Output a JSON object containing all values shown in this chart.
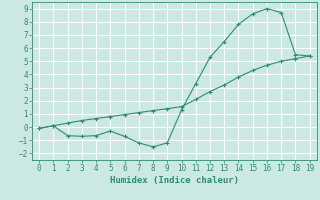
{
  "line1_x": [
    0,
    1,
    2,
    3,
    4,
    5,
    6,
    7,
    8,
    9,
    10,
    11,
    12,
    13,
    14,
    15,
    16,
    17,
    18,
    19
  ],
  "line1_y": [
    -0.1,
    0.1,
    -0.65,
    -0.7,
    -0.65,
    -0.3,
    -0.7,
    -1.2,
    -1.5,
    -1.2,
    1.3,
    3.3,
    5.3,
    6.5,
    7.8,
    8.6,
    9.0,
    8.7,
    5.5,
    5.4
  ],
  "line2_x": [
    0,
    1,
    2,
    3,
    4,
    5,
    6,
    7,
    8,
    9,
    10,
    11,
    12,
    13,
    14,
    15,
    16,
    17,
    18,
    19
  ],
  "line2_y": [
    -0.1,
    0.1,
    0.3,
    0.5,
    0.65,
    0.8,
    0.95,
    1.1,
    1.25,
    1.4,
    1.55,
    2.1,
    2.7,
    3.2,
    3.8,
    4.3,
    4.7,
    5.0,
    5.2,
    5.4
  ],
  "color": "#2e8b74",
  "bg_color": "#cce8e4",
  "grid_color": "#b0d8d3",
  "xlabel": "Humidex (Indice chaleur)",
  "ylim": [
    -2.5,
    9.5
  ],
  "xlim": [
    -0.5,
    19.5
  ],
  "yticks": [
    -2,
    -1,
    0,
    1,
    2,
    3,
    4,
    5,
    6,
    7,
    8,
    9
  ],
  "xticks": [
    0,
    1,
    2,
    3,
    4,
    5,
    6,
    7,
    8,
    9,
    10,
    11,
    12,
    13,
    14,
    15,
    16,
    17,
    18,
    19
  ]
}
